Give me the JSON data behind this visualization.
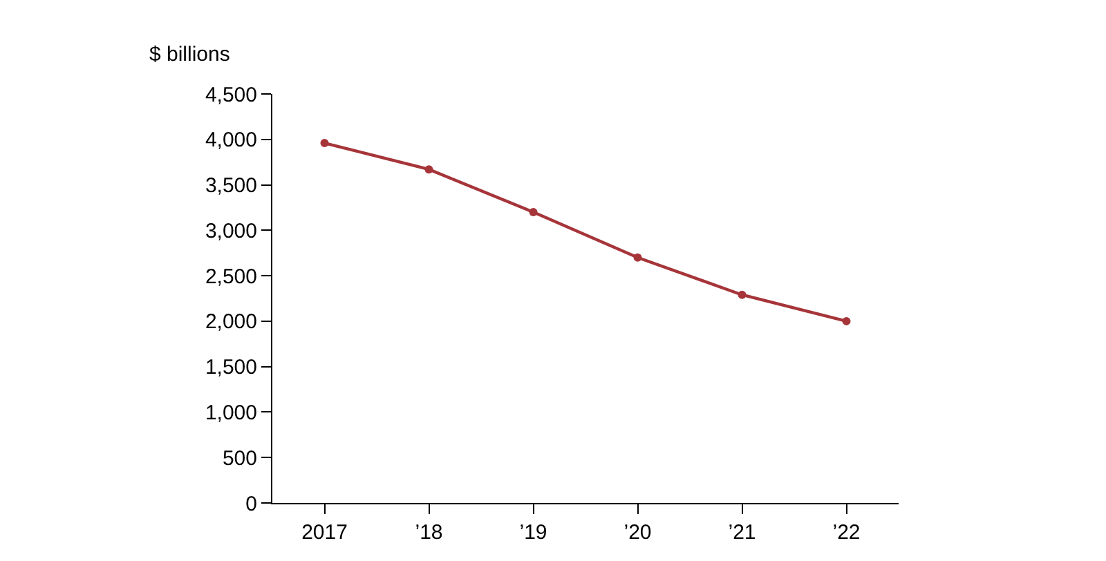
{
  "chart_data": {
    "type": "line",
    "ylabel": "$ billions",
    "categories": [
      "2017",
      "’18",
      "’19",
      "’20",
      "’21",
      "’22"
    ],
    "series": [
      {
        "color": "#a6353a",
        "values": [
          3960,
          3670,
          3200,
          2700,
          2290,
          2000
        ]
      }
    ],
    "ylim": [
      0,
      4500
    ],
    "yticks": [
      {
        "value": 0,
        "label": "0"
      },
      {
        "value": 500,
        "label": "500"
      },
      {
        "value": 1000,
        "label": "1,000"
      },
      {
        "value": 1500,
        "label": "1,500"
      },
      {
        "value": 2000,
        "label": "2,000"
      },
      {
        "value": 2500,
        "label": "2,500"
      },
      {
        "value": 3000,
        "label": "3,000"
      },
      {
        "value": 3500,
        "label": "3,500"
      },
      {
        "value": 4000,
        "label": "4,000"
      },
      {
        "value": 4500,
        "label": "4,500"
      }
    ],
    "marker": "circle",
    "line_style": "solid"
  }
}
